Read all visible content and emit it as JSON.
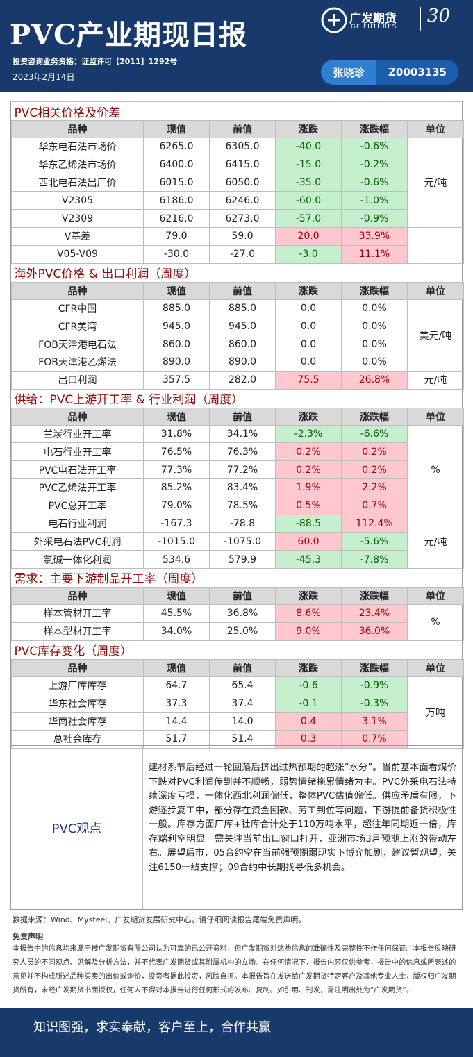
{
  "header": {
    "title": "PVC产业期现日报",
    "license": "投资咨询业务资格：证监许可【2011】1292号",
    "date": "2023年2月14日",
    "brand": "广发期货",
    "brand_en": "GF FUTURES",
    "anniversary": "30",
    "author": "张晓珍",
    "author_id": "Z0003135"
  },
  "columns": [
    "品种",
    "现值",
    "前值",
    "涨跌",
    "涨跌幅",
    "单位"
  ],
  "sections": [
    {
      "title": "PVC相关价格及价差",
      "groups": [
        {
          "unit": "元/吨",
          "rows": [
            [
              "华东电石法市场价",
              "6265.0",
              "6305.0",
              "-40.0",
              "-0.6%"
            ],
            [
              "华东乙烯法市场价",
              "6400.0",
              "6415.0",
              "-15.0",
              "-0.2%"
            ],
            [
              "西北电石法出厂价",
              "6015.0",
              "6050.0",
              "-35.0",
              "-0.6%"
            ],
            [
              "V2305",
              "6186.0",
              "6246.0",
              "-60.0",
              "-1.0%"
            ],
            [
              "V2309",
              "6216.0",
              "6273.0",
              "-57.0",
              "-0.9%"
            ]
          ]
        },
        {
          "rows": [
            [
              "V基差",
              "79.0",
              "59.0",
              "20.0",
              "33.9%"
            ],
            [
              "V05-V09",
              "-30.0",
              "-27.0",
              "-3.0",
              "11.1%"
            ]
          ]
        }
      ]
    },
    {
      "title": "海外PVC价格 & 出口利润（周度）",
      "groups": [
        {
          "unit": "美元/吨",
          "rows": [
            [
              "CFR中国",
              "885.0",
              "885.0",
              "0.0",
              "0.0%"
            ],
            [
              "CFR美湾",
              "945.0",
              "945.0",
              "0.0",
              "0.0%"
            ],
            [
              "FOB天津港电石法",
              "860.0",
              "860.0",
              "0.0",
              "0.0%"
            ],
            [
              "FOB天津港乙烯法",
              "890.0",
              "890.0",
              "0.0",
              "0.0%"
            ]
          ]
        },
        {
          "unit": "元/吨",
          "rows": [
            [
              "出口利润",
              "357.5",
              "282.0",
              "75.5",
              "26.8%"
            ]
          ]
        }
      ]
    },
    {
      "title": "供给：PVC上游开工率 & 行业利润（周度）",
      "groups": [
        {
          "unit": "%",
          "rows": [
            [
              "兰炭行业开工率",
              "31.8%",
              "34.1%",
              "-2.3%",
              "-6.6%"
            ],
            [
              "电石行业开工率",
              "76.5%",
              "76.3%",
              "0.2%",
              "0.2%"
            ],
            [
              "PVC电石法开工率",
              "77.3%",
              "77.2%",
              "0.2%",
              "0.2%"
            ],
            [
              "PVC乙烯法开工率",
              "85.2%",
              "83.4%",
              "1.9%",
              "2.2%"
            ],
            [
              "PVC总开工率",
              "79.0%",
              "78.5%",
              "0.5%",
              "0.7%"
            ]
          ]
        },
        {
          "unit": "元/吨",
          "rows": [
            [
              "电石行业利润",
              "-167.3",
              "-78.8",
              "-88.5",
              "112.4%"
            ],
            [
              "外采电石法PVC利润",
              "-1015.0",
              "-1075.0",
              "60.0",
              "-5.6%"
            ],
            [
              "氯碱一体化利润",
              "534.6",
              "579.9",
              "-45.3",
              "-7.8%"
            ]
          ]
        }
      ]
    },
    {
      "title": "需求：主要下游制品开工率（周度）",
      "groups": [
        {
          "unit": "%",
          "rows": [
            [
              "样本管材开工率",
              "45.5%",
              "36.8%",
              "8.6%",
              "23.4%"
            ],
            [
              "样本型材开工率",
              "34.0%",
              "25.0%",
              "9.0%",
              "36.0%"
            ]
          ]
        }
      ]
    },
    {
      "title": "PVC库存变化（周度）",
      "groups": [
        {
          "unit": "万吨",
          "rows": [
            [
              "上游厂库库存",
              "64.7",
              "65.4",
              "-0.6",
              "-0.9%"
            ],
            [
              "华东社会库存",
              "37.3",
              "37.4",
              "-0.1",
              "-0.3%"
            ],
            [
              "华南社会库存",
              "14.4",
              "14.0",
              "0.4",
              "3.1%"
            ],
            [
              "总社会库存",
              "51.7",
              "51.4",
              "0.3",
              "0.7%"
            ]
          ]
        }
      ]
    }
  ],
  "viewpoint": {
    "label": "PVC观点",
    "text": "建材系节后经过一轮回落后挤出过热预期的超涨“水分”。当前基本面看煤价下跌对PVC利润传到并不顺畅，弱势情绪拖累情绪为主。PVC外采电石法持续深度亏损，一体化西北利润偏低，整体PVC估值偏低。供应矛盾有限，下游逐步复工中，部分存在资金回款、劳工到位等问题，下游提前备货积极性一般。库存方面厂库+社库合计处于110万吨水平，超往年同期近一倍，库存端利空明显。需关注当前出口窗口打开，亚洲市场3月预期上涨的带动左右。展望后市，05合约空在当前强预期弱现实下博弈加剧，建议暂观望，关注6150一线支撑；09合约中长期找寻低多机会。"
  },
  "footer": {
    "source": "数据来源：Wind、Mysteel、广发期货发展研究中心。请仔细阅读报告尾端免责声明。",
    "disclaimer_title": "免责声明",
    "disclaimer": "本报告中的信息均来源于被广发期货有限公司认为可靠的已公开资料，但广发期货对这些信息的准确性及完整性不作任何保证。本报告反映研究人员的不同观点、见解及分析方法，并不代表广发期货或其附属机构的立场。在任何情况下，报告内容仅供参考，报告中的信息或所表述的意见并不构成所述品种买卖的出价或询价，投资者据此投资，风险自担。本报告旨在发送给广发期货特定客户及其他专业人士，版权归广发期货所有，未经广发期货书面授权，任何人不得对本报告进行任何形式的发布、复制。如引用、刊发，需注明出处为“广发期货”。",
    "slogan": "知识图强，求实奉献，客户至上，合作共赢"
  }
}
